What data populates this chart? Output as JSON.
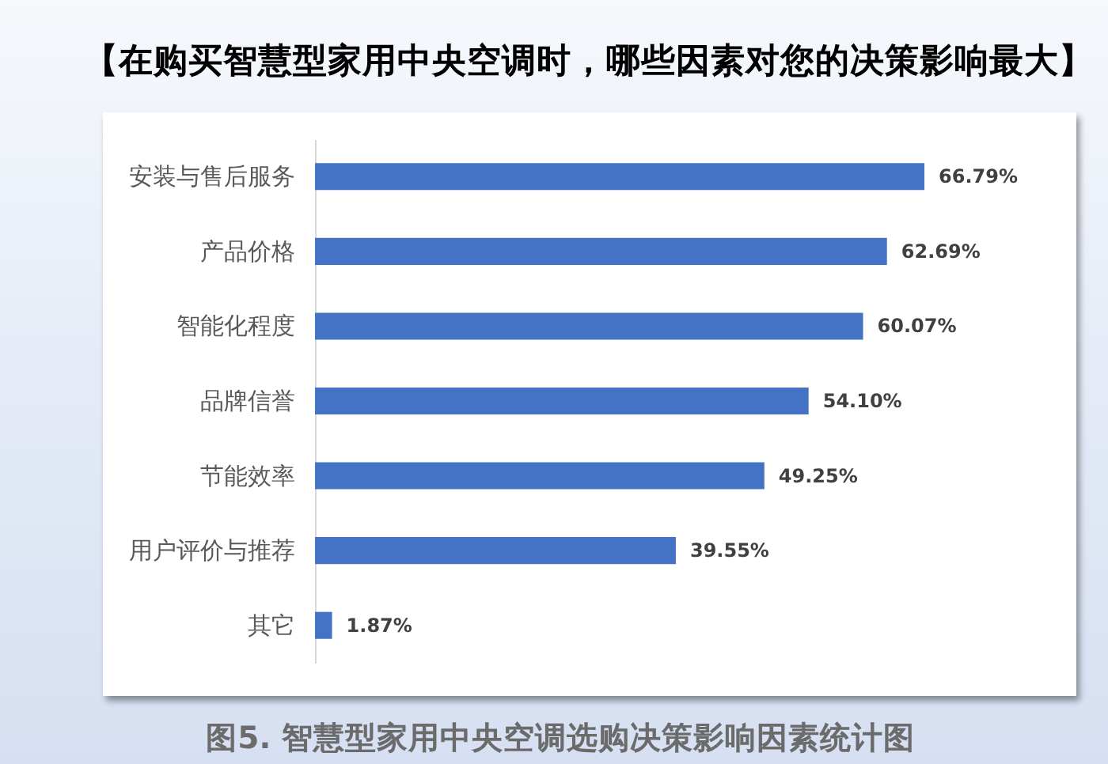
{
  "chart_data": {
    "type": "bar",
    "orientation": "horizontal",
    "title": "【在购买智慧型家用中央空调时，哪些因素对您的决策影响最大】",
    "categories": [
      "安装与售后服务",
      "产品价格",
      "智能化程度",
      "品牌信誉",
      "节能效率",
      "用户评价与推荐",
      "其它"
    ],
    "values": [
      66.79,
      62.69,
      60.07,
      54.1,
      49.25,
      39.55,
      1.87
    ],
    "value_labels": [
      "66.79%",
      "62.69%",
      "60.07%",
      "54.10%",
      "49.25%",
      "39.55%",
      "1.87%"
    ],
    "color": "#4472c4",
    "tick_labels": "y",
    "annotations": [
      "图5. 智慧型家用中央空调选购决策影响因素统计图"
    ]
  }
}
